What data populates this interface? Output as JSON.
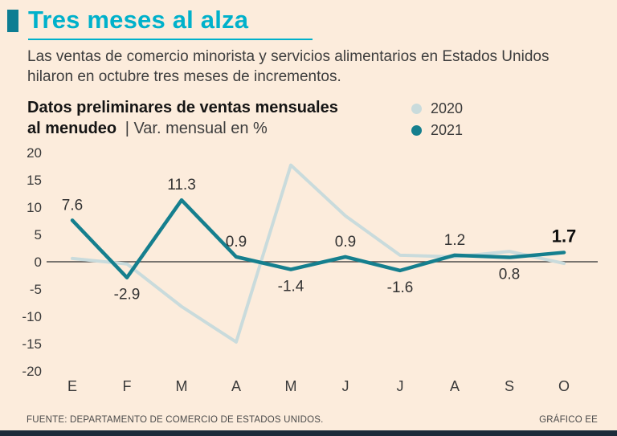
{
  "header": {
    "title": "Tres meses al alza",
    "subtitle_lines": [
      "Las ventas de comercio minorista y servicios alimentarios en Estados Unidos",
      "hilaron en octubre tres meses de incrementos."
    ],
    "heading_line1_bold": "Datos preliminares de ventas mensuales",
    "heading_line2_bold": "al menudeo",
    "heading_line2_rest": "| Var. mensual en %"
  },
  "colors": {
    "accent_cyan": "#00b1cb",
    "teal_2021": "#157f8e",
    "light_2020": "#c9dbdc",
    "background": "#fcecdc",
    "footer_bar": "#1c2b3a"
  },
  "chart_data": {
    "type": "line",
    "title": "Datos preliminares de ventas mensuales al menudeo",
    "ylabel": "Var. mensual en %",
    "categories": [
      "E",
      "F",
      "M",
      "A",
      "M",
      "J",
      "J",
      "A",
      "S",
      "O"
    ],
    "series": [
      {
        "name": "2020",
        "color": "#c9dbdc",
        "width": 4,
        "values": [
          0.6,
          -0.4,
          -8.2,
          -14.7,
          17.7,
          8.4,
          1.2,
          0.9,
          1.9,
          -0.3
        ]
      },
      {
        "name": "2021",
        "color": "#157f8e",
        "width": 4.5,
        "values": [
          7.6,
          -2.9,
          11.3,
          0.9,
          -1.4,
          0.9,
          -1.6,
          1.2,
          0.8,
          1.7
        ]
      }
    ],
    "point_labels": [
      {
        "text": "7.6",
        "position": "above",
        "bold": false
      },
      {
        "text": "-2.9",
        "position": "below",
        "bold": false
      },
      {
        "text": "11.3",
        "position": "above",
        "bold": false
      },
      {
        "text": "0.9",
        "position": "above",
        "bold": false
      },
      {
        "text": "-1.4",
        "position": "below",
        "bold": false
      },
      {
        "text": "0.9",
        "position": "above",
        "bold": false
      },
      {
        "text": "-1.6",
        "position": "below",
        "bold": false
      },
      {
        "text": "1.2",
        "position": "above",
        "bold": false
      },
      {
        "text": "0.8",
        "position": "below",
        "bold": false
      },
      {
        "text": "1.7",
        "position": "above",
        "bold": true
      }
    ],
    "ylim": [
      -20,
      20
    ],
    "yticks": [
      20,
      15,
      10,
      5,
      0,
      -5,
      -10,
      -15,
      -20
    ],
    "grid": false,
    "legend_position": "top-right"
  },
  "footer": {
    "source": "FUENTE: DEPARTAMENTO DE COMERCIO DE ESTADOS UNIDOS.",
    "credit": "GRÁFICO EE"
  }
}
